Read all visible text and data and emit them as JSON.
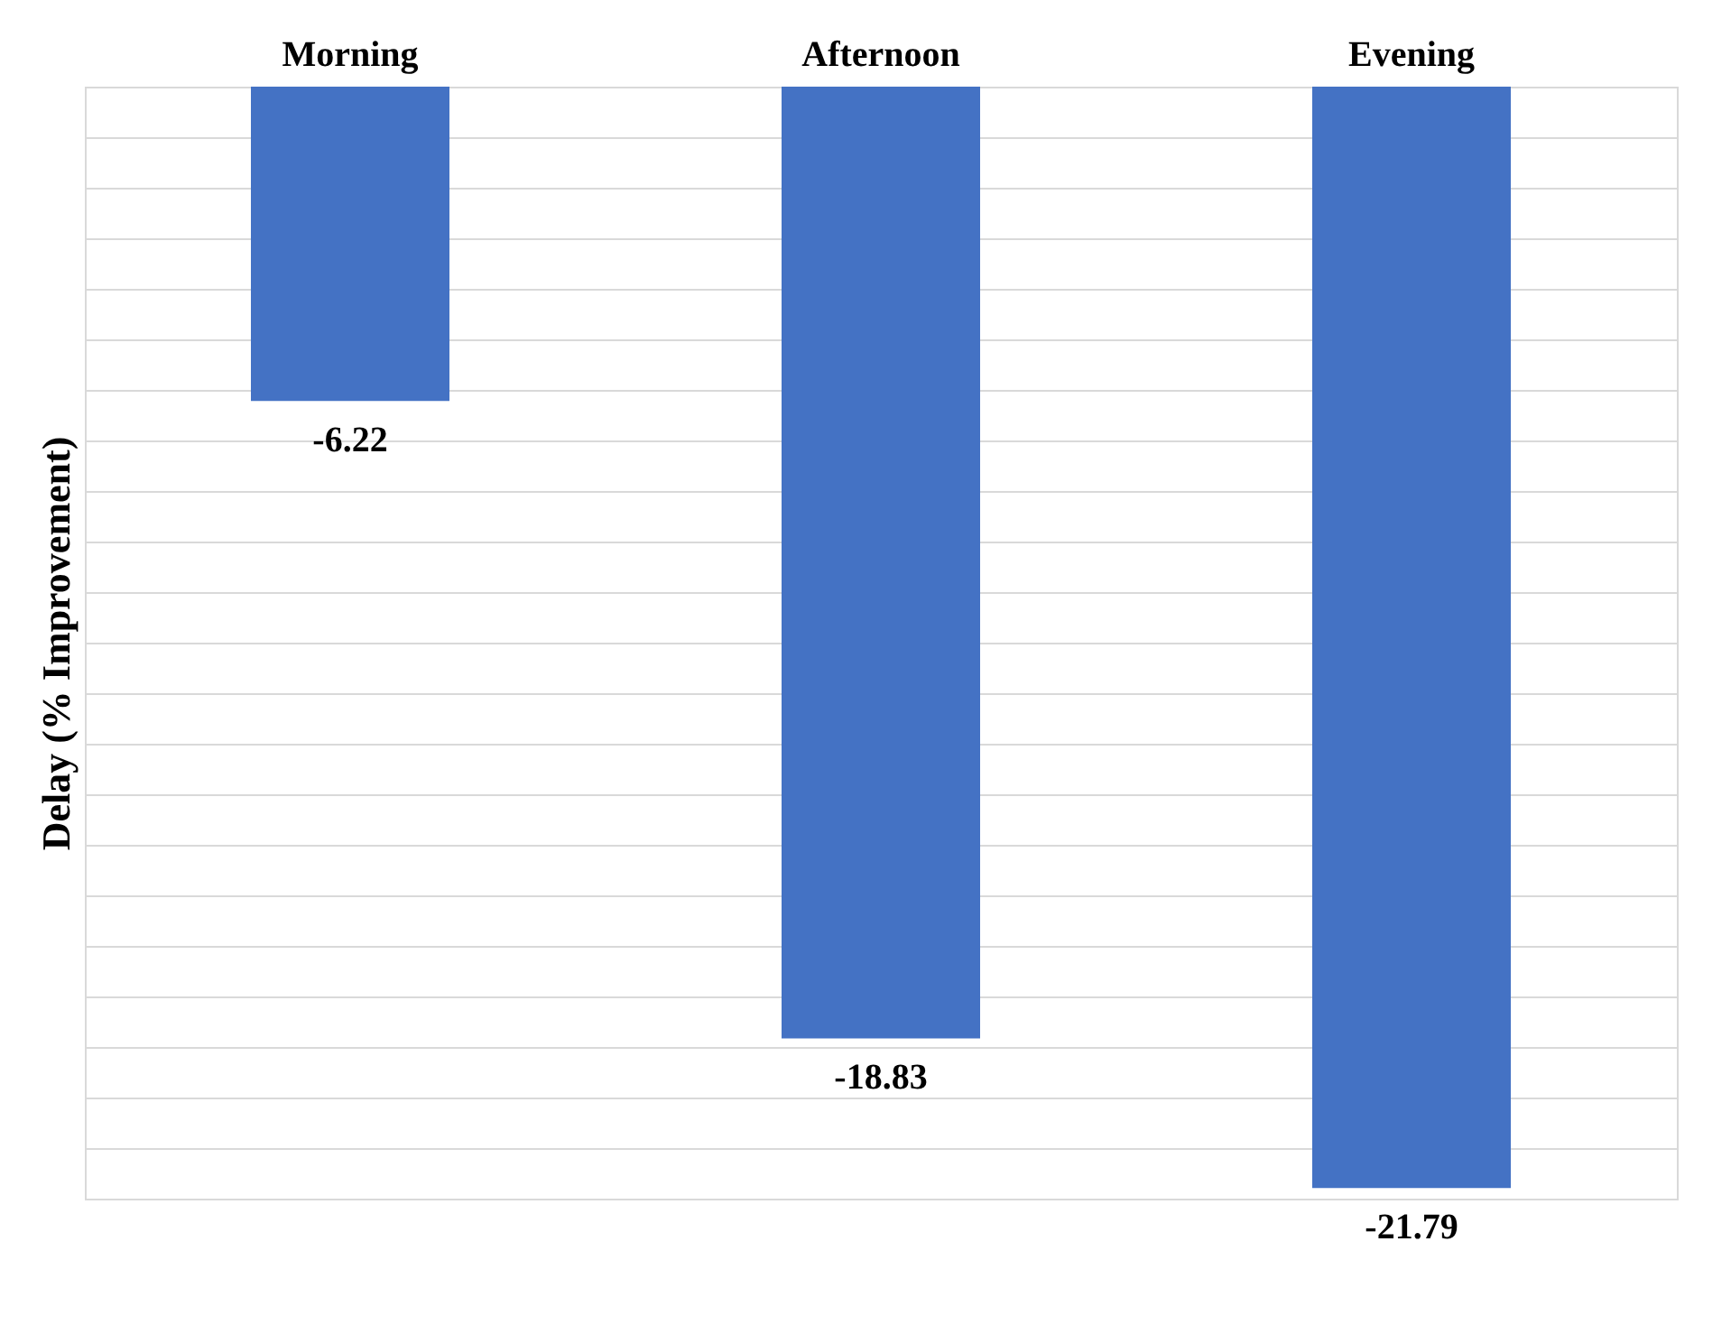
{
  "chart_data": {
    "type": "bar",
    "ylabel": "Delay (% Improvement)",
    "categories": [
      "Morning",
      "Afternoon",
      "Evening"
    ],
    "values": [
      -6.22,
      -18.83,
      -21.79
    ],
    "color": "#4472c4",
    "data_labels": true,
    "grid": "y",
    "tick_labels": "x"
  }
}
